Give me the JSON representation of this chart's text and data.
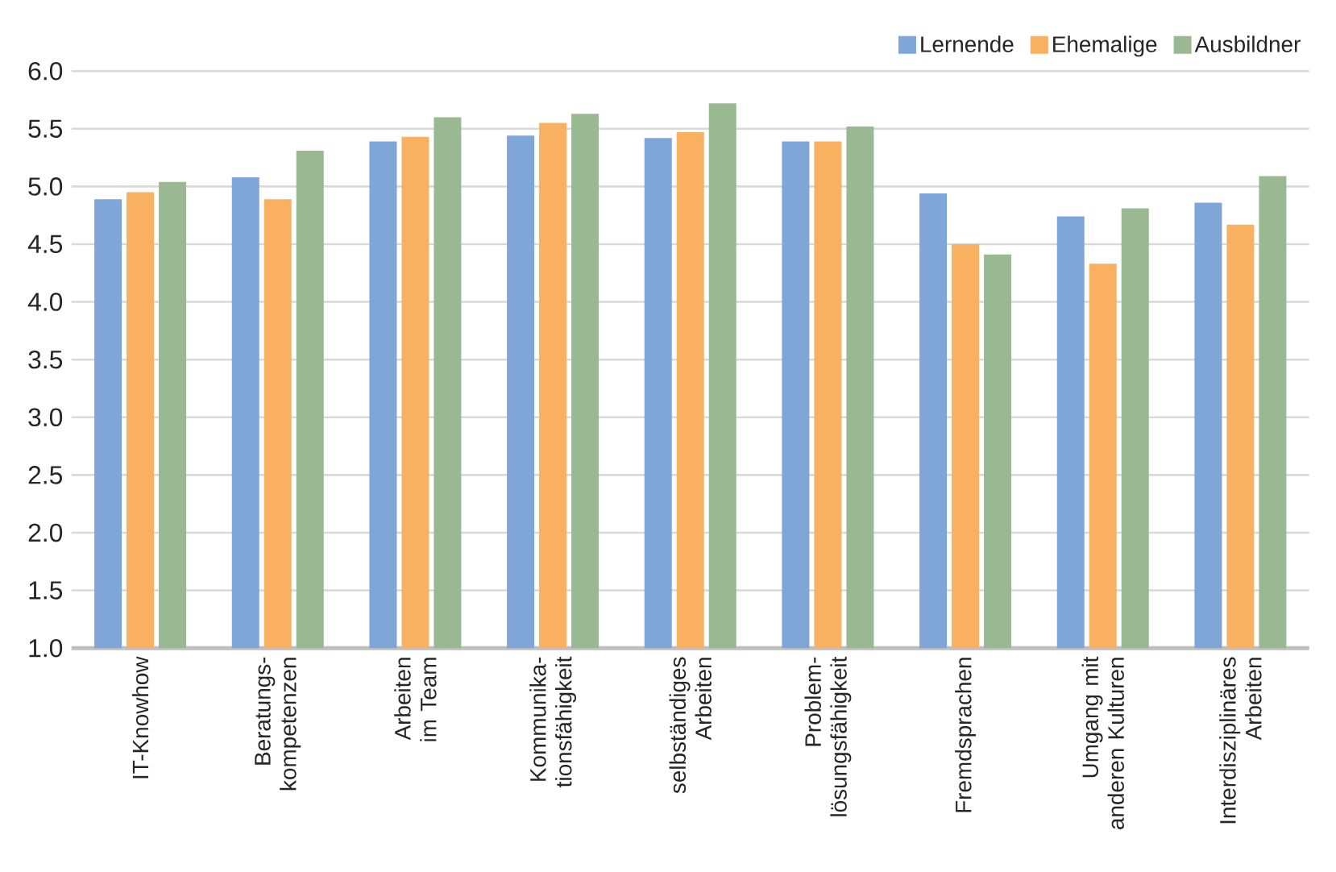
{
  "chart_data": {
    "type": "bar",
    "categories": [
      "IT-Knowhow",
      "Beratungs-kompetenzen",
      "Arbeiten im Team",
      "Kommunika-tionsfähigkeit",
      "selbständiges Arbeiten",
      "Problem-lösungsfähigkeit",
      "Fremdsprachen",
      "Umgang mit anderen Kulturen",
      "Interdisziplinäres Arbeiten"
    ],
    "series": [
      {
        "name": "Lernende",
        "color": "#7ea6d8",
        "values": [
          4.89,
          5.08,
          5.39,
          5.44,
          5.42,
          5.39,
          4.94,
          4.74,
          4.86
        ]
      },
      {
        "name": "Ehemalige",
        "color": "#f9b060",
        "values": [
          4.95,
          4.89,
          5.43,
          5.55,
          5.47,
          5.39,
          4.5,
          4.33,
          4.67
        ]
      },
      {
        "name": "Ausbildner",
        "color": "#9ab891",
        "values": [
          5.04,
          5.31,
          5.6,
          5.63,
          5.72,
          5.52,
          4.41,
          4.81,
          5.09
        ]
      }
    ],
    "ylim": [
      1,
      6
    ],
    "yticks": [
      {
        "value": 1,
        "label": "1.0"
      },
      {
        "value": 1.5,
        "label": "1.5"
      },
      {
        "value": 2,
        "label": "2.0"
      },
      {
        "value": 2.5,
        "label": "2.5"
      },
      {
        "value": 3,
        "label": "3.0"
      },
      {
        "value": 3.5,
        "label": "3.5"
      },
      {
        "value": 4,
        "label": "4.0"
      },
      {
        "value": 4.5,
        "label": "4.5"
      },
      {
        "value": 5,
        "label": "5.0"
      },
      {
        "value": 5.5,
        "label": "5.5"
      },
      {
        "value": 6,
        "label": "6.0"
      }
    ],
    "grid": "y",
    "legend": "top right"
  }
}
